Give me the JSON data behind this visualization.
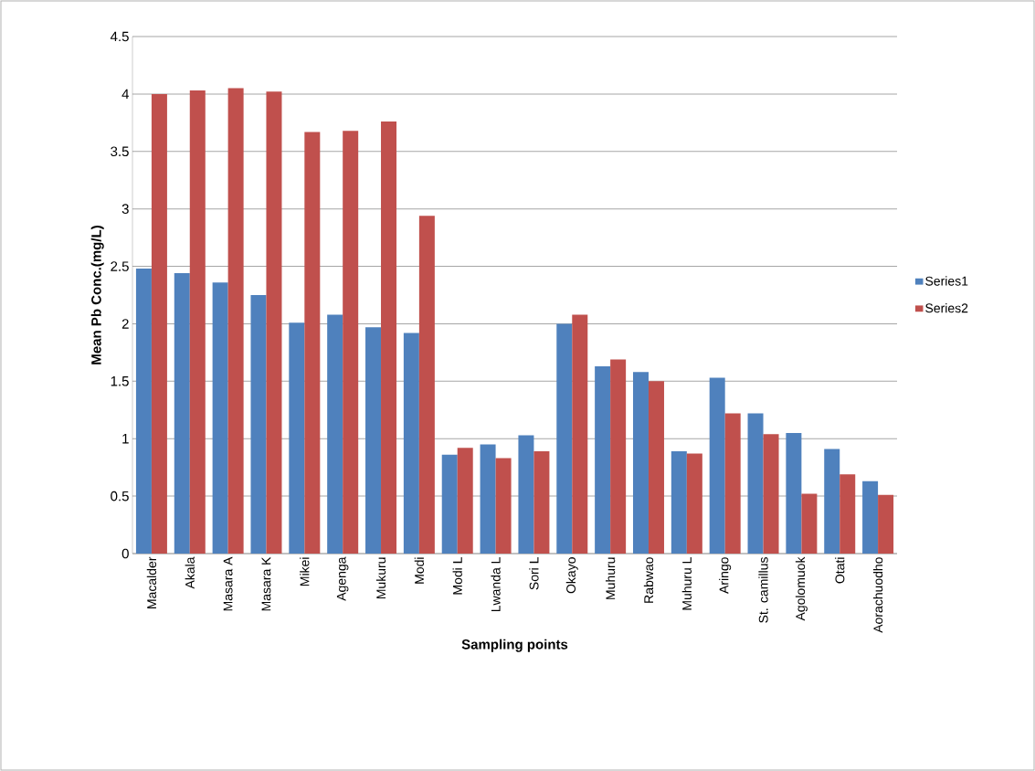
{
  "chart_data": {
    "type": "bar",
    "xlabel": "Sampling points",
    "ylabel": "Mean Pb Conc.(mg/L)",
    "categories": [
      "Macalder",
      "Akala",
      "Masara A",
      "Masara K",
      "Mikei",
      "Agenga",
      "Mukuru",
      "Modi",
      "Modi L",
      "Lwanda L",
      "Sori L",
      "Okayo",
      "Muhuru",
      "Rabwao",
      "Muhuru L",
      "Aringo",
      "St. camillus",
      "Agolomuok",
      "Otati",
      "Aorachuodho"
    ],
    "series": [
      {
        "name": "Series1",
        "color": "#4f81bd",
        "values": [
          2.48,
          2.44,
          2.36,
          2.25,
          2.01,
          2.08,
          1.97,
          1.92,
          0.86,
          0.95,
          1.03,
          2.0,
          1.63,
          1.58,
          0.89,
          1.53,
          1.22,
          1.05,
          0.91,
          0.63
        ]
      },
      {
        "name": "Series2",
        "color": "#c0504d",
        "values": [
          4.0,
          4.03,
          4.05,
          4.02,
          3.67,
          3.68,
          3.76,
          2.94,
          0.92,
          0.83,
          0.89,
          2.08,
          1.69,
          1.5,
          0.87,
          1.22,
          1.04,
          0.52,
          0.69,
          0.51
        ]
      }
    ],
    "ylim": [
      0,
      4.5
    ],
    "yticks": [
      0,
      0.5,
      1,
      1.5,
      2,
      2.5,
      3,
      3.5,
      4,
      4.5
    ],
    "grid": "y",
    "legend": "right"
  }
}
